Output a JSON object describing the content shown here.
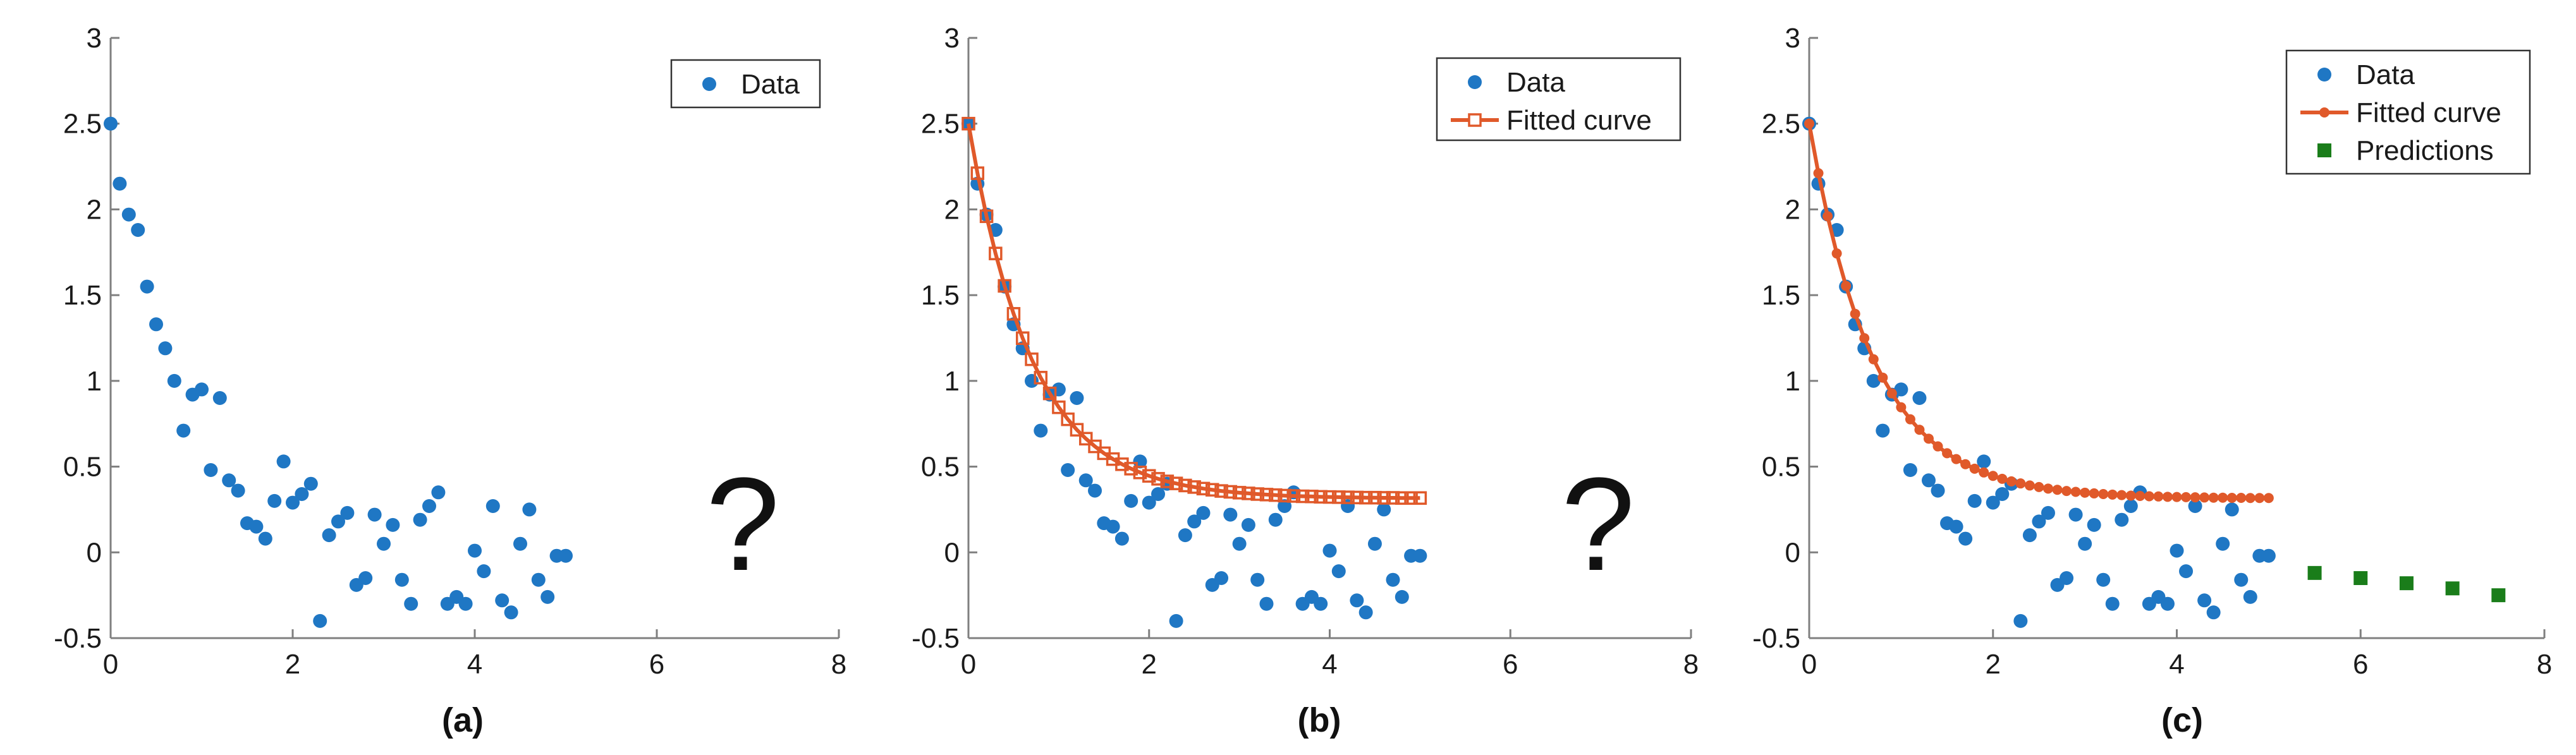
{
  "figure": {
    "captions": [
      "(a)",
      "(b)",
      "(c)"
    ],
    "question_mark": "?"
  },
  "colors": {
    "data": "#1f77c4",
    "fit": "#e0592a",
    "pred": "#1a7d1a",
    "axis": "#7f7f7f"
  },
  "chart_data": [
    {
      "type": "scatter",
      "panel": "a",
      "xlim": [
        0,
        8
      ],
      "ylim": [
        -0.5,
        3
      ],
      "xticks": [
        "0",
        "2",
        "4",
        "6",
        "8"
      ],
      "yticks": [
        "-0.5",
        "0",
        "0.5",
        "1",
        "1.5",
        "2",
        "2.5",
        "3"
      ],
      "grid": false,
      "legend_position": "top-right",
      "series": [
        {
          "name": "Data",
          "x": [
            0,
            0.1,
            0.2,
            0.3,
            0.4,
            0.5,
            0.6,
            0.7,
            0.8,
            0.9,
            1.0,
            1.1,
            1.2,
            1.3,
            1.4,
            1.5,
            1.6,
            1.7,
            1.8,
            1.9,
            2.0,
            2.1,
            2.2,
            2.3,
            2.4,
            2.5,
            2.6,
            2.7,
            2.8,
            2.9,
            3.0,
            3.1,
            3.2,
            3.3,
            3.4,
            3.5,
            3.6,
            3.7,
            3.8,
            3.9,
            4.0,
            4.1,
            4.2,
            4.3,
            4.4,
            4.5,
            4.6,
            4.7,
            4.8,
            4.9,
            5.0
          ],
          "y": [
            2.5,
            2.15,
            1.97,
            1.88,
            1.55,
            1.33,
            1.19,
            1.0,
            0.71,
            0.92,
            0.95,
            0.48,
            0.9,
            0.42,
            0.36,
            0.17,
            0.15,
            0.08,
            0.3,
            0.53,
            0.29,
            0.34,
            0.4,
            -0.4,
            0.1,
            0.18,
            0.23,
            -0.19,
            -0.15,
            0.22,
            0.05,
            0.16,
            -0.16,
            -0.3,
            0.19,
            0.27,
            0.35,
            -0.3,
            -0.26,
            -0.3,
            0.01,
            -0.11,
            0.27,
            -0.28,
            -0.35,
            0.05,
            0.25,
            -0.16,
            -0.26,
            -0.02,
            -0.02
          ]
        }
      ]
    },
    {
      "type": "line",
      "panel": "b",
      "xlim": [
        0,
        8
      ],
      "ylim": [
        -0.5,
        3
      ],
      "xticks": [
        "0",
        "2",
        "4",
        "6",
        "8"
      ],
      "yticks": [
        "-0.5",
        "0",
        "0.5",
        "1",
        "1.5",
        "2",
        "2.5",
        "3"
      ],
      "grid": false,
      "legend_position": "top-right",
      "series": [
        {
          "name": "Data",
          "style": "scatter",
          "x": [
            0,
            0.1,
            0.2,
            0.3,
            0.4,
            0.5,
            0.6,
            0.7,
            0.8,
            0.9,
            1.0,
            1.1,
            1.2,
            1.3,
            1.4,
            1.5,
            1.6,
            1.7,
            1.8,
            1.9,
            2.0,
            2.1,
            2.2,
            2.3,
            2.4,
            2.5,
            2.6,
            2.7,
            2.8,
            2.9,
            3.0,
            3.1,
            3.2,
            3.3,
            3.4,
            3.5,
            3.6,
            3.7,
            3.8,
            3.9,
            4.0,
            4.1,
            4.2,
            4.3,
            4.4,
            4.5,
            4.6,
            4.7,
            4.8,
            4.9,
            5.0
          ],
          "y": [
            2.5,
            2.15,
            1.97,
            1.88,
            1.55,
            1.33,
            1.19,
            1.0,
            0.71,
            0.92,
            0.95,
            0.48,
            0.9,
            0.42,
            0.36,
            0.17,
            0.15,
            0.08,
            0.3,
            0.53,
            0.29,
            0.34,
            0.4,
            -0.4,
            0.1,
            0.18,
            0.23,
            -0.19,
            -0.15,
            0.22,
            0.05,
            0.16,
            -0.16,
            -0.3,
            0.19,
            0.27,
            0.35,
            -0.3,
            -0.26,
            -0.3,
            0.01,
            -0.11,
            0.27,
            -0.28,
            -0.35,
            0.05,
            0.25,
            -0.16,
            -0.26,
            -0.02,
            -0.02
          ]
        },
        {
          "name": "Fitted curve",
          "style": "line-square",
          "x": [
            0,
            0.1,
            0.2,
            0.3,
            0.4,
            0.5,
            0.6,
            0.7,
            0.8,
            0.9,
            1.0,
            1.1,
            1.2,
            1.3,
            1.4,
            1.5,
            1.6,
            1.7,
            1.8,
            1.9,
            2.0,
            2.1,
            2.2,
            2.3,
            2.4,
            2.5,
            2.6,
            2.7,
            2.8,
            2.9,
            3.0,
            3.1,
            3.2,
            3.3,
            3.4,
            3.5,
            3.6,
            3.7,
            3.8,
            3.9,
            4.0,
            4.1,
            4.2,
            4.3,
            4.4,
            4.5,
            4.6,
            4.7,
            4.8,
            4.9,
            5.0
          ],
          "y": [
            2.5,
            2.211,
            1.96,
            1.743,
            1.554,
            1.391,
            1.249,
            1.126,
            1.019,
            0.927,
            0.846,
            0.776,
            0.715,
            0.663,
            0.618,
            0.578,
            0.544,
            0.514,
            0.488,
            0.466,
            0.446,
            0.429,
            0.414,
            0.402,
            0.39,
            0.381,
            0.372,
            0.365,
            0.358,
            0.353,
            0.348,
            0.344,
            0.34,
            0.337,
            0.334,
            0.331,
            0.329,
            0.327,
            0.326,
            0.324,
            0.323,
            0.322,
            0.321,
            0.32,
            0.319,
            0.319,
            0.318,
            0.318,
            0.317,
            0.317,
            0.317
          ],
          "y_offset_note": "",
          "y_actual": [
            2.5,
            2.211,
            1.96,
            1.743,
            1.554,
            1.391,
            1.249,
            1.126,
            1.019,
            0.927,
            0.846,
            0.776,
            0.715,
            0.663,
            0.618,
            0.578,
            0.544,
            0.514,
            0.488,
            0.466,
            0.446,
            0.429,
            0.414,
            0.402,
            0.39,
            0.381,
            0.372,
            0.365,
            0.358,
            0.353,
            0.348,
            0.344,
            0.34,
            0.337,
            0.334,
            0.331,
            0.329,
            0.327,
            0.326,
            0.324,
            0.323,
            0.322,
            0.321,
            0.32,
            0.319,
            0.319,
            0.318,
            0.318,
            0.317,
            0.317,
            0.317
          ]
        }
      ]
    },
    {
      "type": "line",
      "panel": "c",
      "xlim": [
        0,
        8
      ],
      "ylim": [
        -0.5,
        3
      ],
      "xticks": [
        "0",
        "2",
        "4",
        "6",
        "8"
      ],
      "yticks": [
        "-0.5",
        "0",
        "0.5",
        "1",
        "1.5",
        "2",
        "2.5",
        "3"
      ],
      "grid": false,
      "legend_position": "top-right",
      "series": [
        {
          "name": "Data",
          "style": "scatter",
          "x": [
            0,
            0.1,
            0.2,
            0.3,
            0.4,
            0.5,
            0.6,
            0.7,
            0.8,
            0.9,
            1.0,
            1.1,
            1.2,
            1.3,
            1.4,
            1.5,
            1.6,
            1.7,
            1.8,
            1.9,
            2.0,
            2.1,
            2.2,
            2.3,
            2.4,
            2.5,
            2.6,
            2.7,
            2.8,
            2.9,
            3.0,
            3.1,
            3.2,
            3.3,
            3.4,
            3.5,
            3.6,
            3.7,
            3.8,
            3.9,
            4.0,
            4.1,
            4.2,
            4.3,
            4.4,
            4.5,
            4.6,
            4.7,
            4.8,
            4.9,
            5.0
          ],
          "y": [
            2.5,
            2.15,
            1.97,
            1.88,
            1.55,
            1.33,
            1.19,
            1.0,
            0.71,
            0.92,
            0.95,
            0.48,
            0.9,
            0.42,
            0.36,
            0.17,
            0.15,
            0.08,
            0.3,
            0.53,
            0.29,
            0.34,
            0.4,
            -0.4,
            0.1,
            0.18,
            0.23,
            -0.19,
            -0.15,
            0.22,
            0.05,
            0.16,
            -0.16,
            -0.3,
            0.19,
            0.27,
            0.35,
            -0.3,
            -0.26,
            -0.3,
            0.01,
            -0.11,
            0.27,
            -0.28,
            -0.35,
            0.05,
            0.25,
            -0.16,
            -0.26,
            -0.02,
            -0.02
          ]
        },
        {
          "name": "Fitted curve",
          "style": "line-dot",
          "x": [
            0,
            0.1,
            0.2,
            0.3,
            0.4,
            0.5,
            0.6,
            0.7,
            0.8,
            0.9,
            1.0,
            1.1,
            1.2,
            1.3,
            1.4,
            1.5,
            1.6,
            1.7,
            1.8,
            1.9,
            2.0,
            2.1,
            2.2,
            2.3,
            2.4,
            2.5,
            2.6,
            2.7,
            2.8,
            2.9,
            3.0,
            3.1,
            3.2,
            3.3,
            3.4,
            3.5,
            3.6,
            3.7,
            3.8,
            3.9,
            4.0,
            4.1,
            4.2,
            4.3,
            4.4,
            4.5,
            4.6,
            4.7,
            4.8,
            4.9,
            5.0
          ],
          "y": [
            2.5,
            2.211,
            1.96,
            1.743,
            1.554,
            1.391,
            1.249,
            1.126,
            1.019,
            0.927,
            0.846,
            0.776,
            0.715,
            0.663,
            0.618,
            0.578,
            0.544,
            0.514,
            0.488,
            0.466,
            0.446,
            0.429,
            0.414,
            0.402,
            0.39,
            0.381,
            0.372,
            0.365,
            0.358,
            0.353,
            0.348,
            0.344,
            0.34,
            0.337,
            0.334,
            0.331,
            0.329,
            0.327,
            0.326,
            0.324,
            0.323,
            0.322,
            0.321,
            0.32,
            0.319,
            0.319,
            0.318,
            0.318,
            0.317,
            0.317,
            0.317
          ]
        },
        {
          "name": "Predictions",
          "style": "scatter-square",
          "x": [
            5.5,
            6.0,
            6.5,
            7.0,
            7.5
          ],
          "y": [
            -0.12,
            -0.15,
            -0.18,
            -0.21,
            -0.25
          ]
        }
      ]
    }
  ]
}
